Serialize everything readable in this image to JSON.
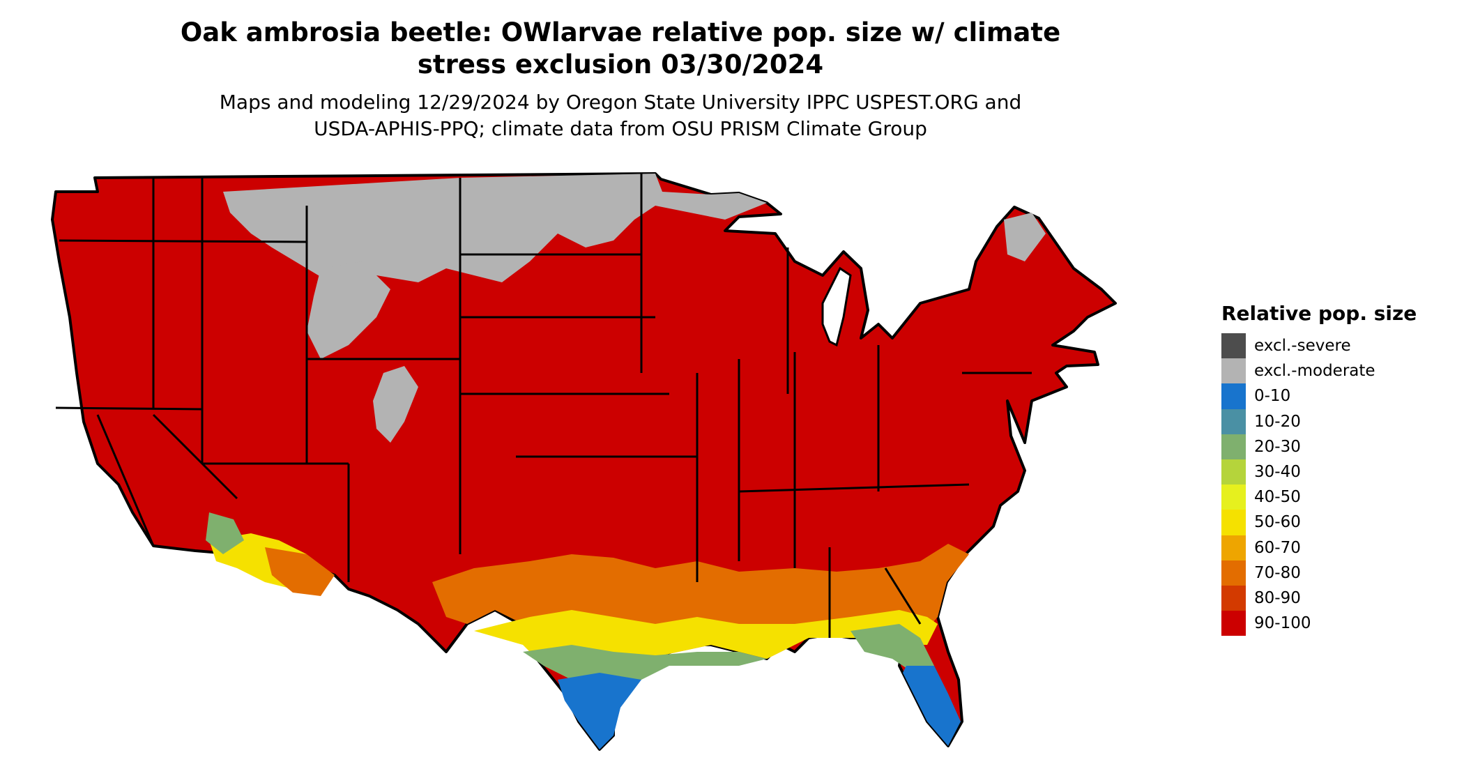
{
  "title_line1": "Oak ambrosia beetle: OWlarvae relative pop. size w/ climate",
  "title_line2": "stress exclusion 03/30/2024",
  "subtitle_line1": "Maps and modeling 12/29/2024 by Oregon State University IPPC USPEST.ORG and",
  "subtitle_line2": "USDA-APHIS-PPQ; climate data from OSU PRISM Climate Group",
  "legend": {
    "title": "Relative pop. size",
    "items": [
      {
        "label": "excl.-severe",
        "color": "#4d4d4d"
      },
      {
        "label": "excl.-moderate",
        "color": "#b3b3b3"
      },
      {
        "label": "0-10",
        "color": "#1874cd"
      },
      {
        "label": "10-20",
        "color": "#4a90a4"
      },
      {
        "label": "20-30",
        "color": "#7fb06e"
      },
      {
        "label": "30-40",
        "color": "#b5d43b"
      },
      {
        "label": "40-50",
        "color": "#e6f01e"
      },
      {
        "label": "50-60",
        "color": "#f5e100"
      },
      {
        "label": "60-70",
        "color": "#eea500"
      },
      {
        "label": "70-80",
        "color": "#e36d00"
      },
      {
        "label": "80-90",
        "color": "#d33a00"
      },
      {
        "label": "90-100",
        "color": "#cc0000"
      }
    ]
  }
}
